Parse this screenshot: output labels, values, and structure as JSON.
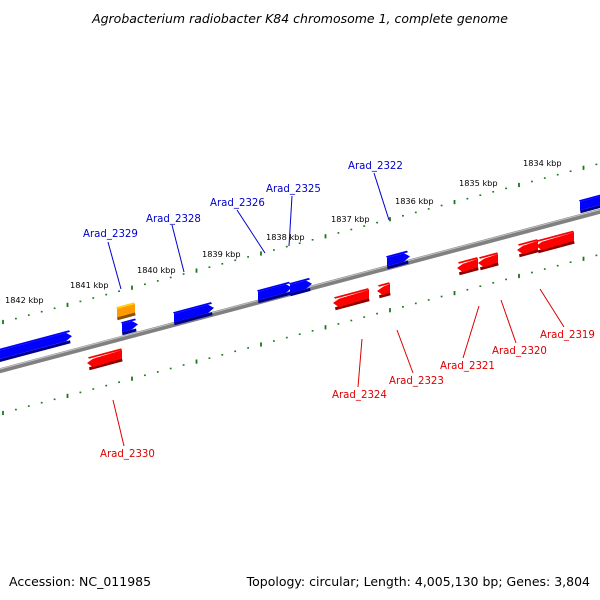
{
  "title": "Agrobacterium radiobacter K84 chromosome 1, complete genome",
  "colors": {
    "backbone": "#808080",
    "backbone_highlight": "#c4c4c4",
    "tick": "#1a7a1a",
    "forward_gene": "#0000ff",
    "reverse_gene": "#ff0000",
    "other_gene": "#ff9900",
    "forward_label": "#0000cc",
    "reverse_label": "#dd0000"
  },
  "kbp_labels": [
    "1834 kbp",
    "1835 kbp",
    "1836 kbp",
    "1837 kbp",
    "1838 kbp",
    "1839 kbp",
    "1840 kbp",
    "1841 kbp",
    "1842 kbp"
  ],
  "genes": {
    "forward": [
      "Arad_2322",
      "Arad_2325",
      "Arad_2326",
      "Arad_2328",
      "Arad_2329"
    ],
    "reverse": [
      "Arad_2319",
      "Arad_2320",
      "Arad_2321",
      "Arad_2323",
      "Arad_2324",
      "Arad_2330"
    ]
  },
  "footer": {
    "accession": "Accession: NC_011985",
    "summary": "Topology: circular; Length: 4,005,130 bp; Genes: 3,804"
  }
}
